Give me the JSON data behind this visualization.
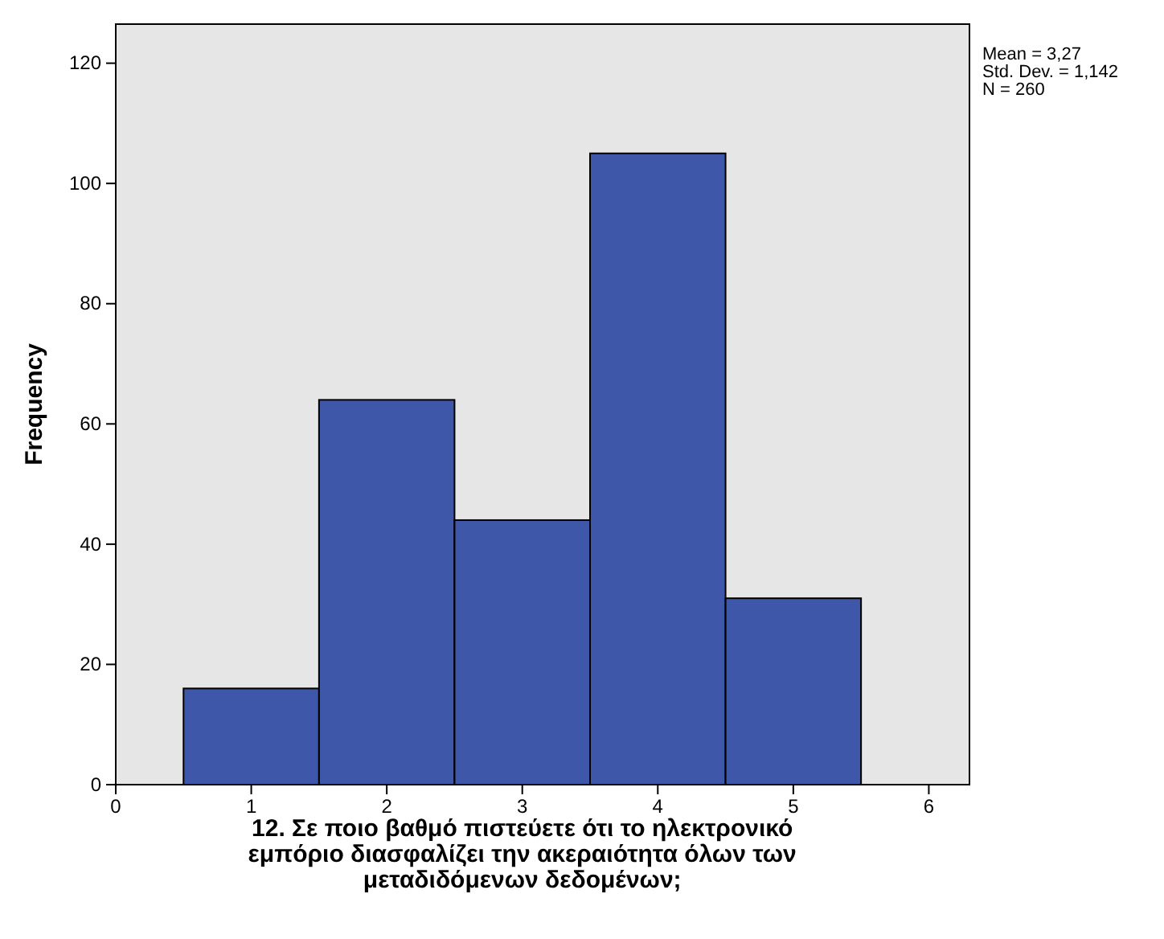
{
  "chart_data": {
    "type": "histogram",
    "xlabel": "12.  Σε ποιο βαθμό πιστεύετε ότι το ηλεκτρονικό εμπόριο διασφαλίζει την ακεραιότητα όλων των μεταδιδόμενων δεδομένων;",
    "ylabel": "Frequency",
    "bins": [
      0.5,
      1.5,
      2.5,
      3.5,
      4.5,
      5.5
    ],
    "values": [
      16,
      64,
      44,
      105,
      31
    ],
    "color": "#3f57a8",
    "xlim": [
      0,
      6.3
    ],
    "xticks": [
      0,
      1,
      2,
      3,
      4,
      5,
      6
    ],
    "ylim": [
      0,
      126.5
    ],
    "yticks": [
      0,
      20,
      40,
      60,
      80,
      100,
      120
    ],
    "grid": false,
    "annotations": [
      "Mean = 3,27",
      "Std. Dev. = 1,142",
      "N = 260"
    ]
  }
}
